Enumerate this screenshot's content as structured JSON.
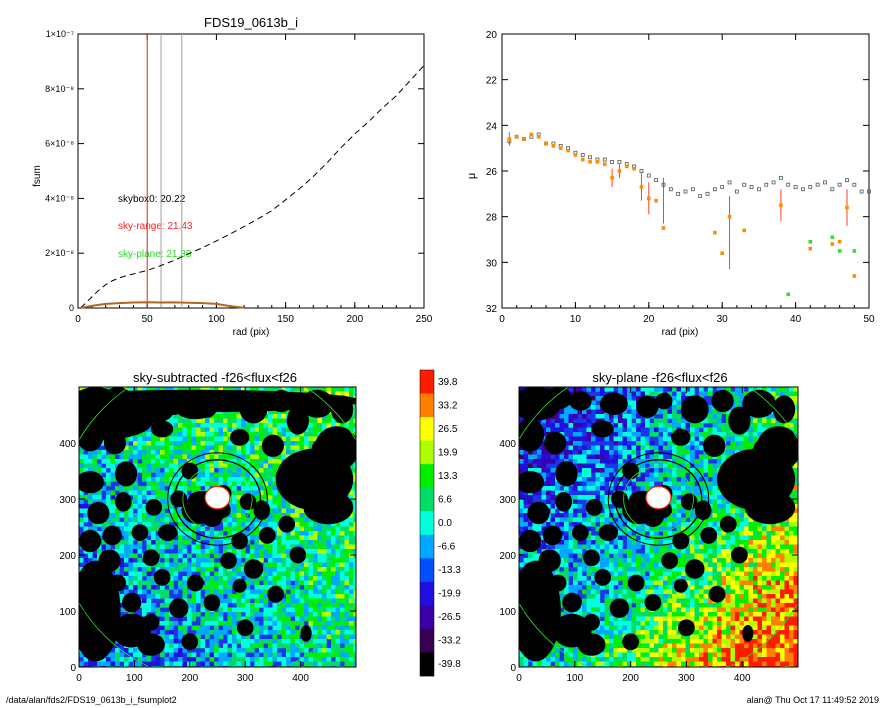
{
  "footer": {
    "left": "/data/alan/fds2/FDS19_0613b_i_fsumplot2",
    "right": "alan@  Thu Oct 17 11:49:52 2019"
  },
  "chart_data": [
    {
      "type": "line",
      "title": "FDS19_0613b_i",
      "xlabel": "rad (pix)",
      "ylabel": "fsum",
      "xlim": [
        0,
        250
      ],
      "ylim": [
        0,
        1e-07
      ],
      "xticks": [
        "0",
        "50",
        "100",
        "150",
        "200",
        "250"
      ],
      "yticks": [
        "0",
        "2×10⁻⁸",
        "4×10⁻⁸",
        "6×10⁻⁸",
        "8×10⁻⁸",
        "1×10⁻⁷"
      ],
      "vlines": [
        {
          "x": 50,
          "color": "#e02020"
        },
        {
          "x": 60,
          "color": "#a0a0a0"
        },
        {
          "x": 75,
          "color": "#a0a0a0"
        }
      ],
      "annotations": [
        {
          "text": "skybox0: 20.22",
          "color": "#000000"
        },
        {
          "text": "sky-range: 21.43",
          "color": "#ff2020"
        },
        {
          "text": "sky-plane: 21.39",
          "color": "#20dd20"
        }
      ],
      "series": [
        {
          "style": "dashed",
          "color": "#000000",
          "x": [
            2,
            5,
            10,
            15,
            20,
            25,
            30,
            35,
            40,
            45,
            50,
            60,
            70,
            80,
            90,
            100,
            110,
            120,
            130,
            140,
            150,
            160,
            170,
            180,
            190,
            200,
            210,
            220,
            230,
            240,
            250
          ],
          "y": [
            1e-10,
            1.5e-09,
            4e-09,
            6.5e-09,
            8.5e-09,
            1e-08,
            1.1e-08,
            1.18e-08,
            1.24e-08,
            1.31e-08,
            1.37e-08,
            1.55e-08,
            1.75e-08,
            1.98e-08,
            2.2e-08,
            2.45e-08,
            2.7e-08,
            2.97e-08,
            3.25e-08,
            3.55e-08,
            3.95e-08,
            4.35e-08,
            4.8e-08,
            5.3e-08,
            5.85e-08,
            6.35e-08,
            6.8e-08,
            7.3e-08,
            7.75e-08,
            8.3e-08,
            8.85e-08
          ]
        },
        {
          "style": "solid",
          "color": "#b5651d",
          "x": [
            2,
            10,
            20,
            30,
            40,
            50,
            60,
            70,
            80,
            90,
            100,
            110,
            120
          ],
          "y": [
            5e-11,
            8e-10,
            1.5e-09,
            1.8e-09,
            2e-09,
            2.1e-09,
            2e-09,
            2.05e-09,
            1.9e-09,
            1.8e-09,
            1.5e-09,
            7e-10,
            1e-10
          ]
        }
      ]
    },
    {
      "type": "scatter",
      "title": "",
      "xlabel": "rad (pix)",
      "ylabel": "μ",
      "xlim": [
        0,
        50
      ],
      "ylim": [
        32,
        20
      ],
      "xticks": [
        "0",
        "10",
        "20",
        "30",
        "40",
        "50"
      ],
      "yticks": [
        "20",
        "22",
        "24",
        "26",
        "28",
        "30",
        "32"
      ],
      "series": [
        {
          "marker": "square-open",
          "color": "#555555",
          "x": [
            1,
            2,
            3,
            4,
            5,
            6,
            7,
            8,
            9,
            10,
            11,
            12,
            13,
            14,
            15,
            16,
            17,
            18,
            19,
            20,
            21,
            22,
            23,
            24,
            25,
            26,
            27,
            28,
            29,
            30,
            31,
            32,
            33,
            34,
            35,
            36,
            37,
            38,
            39,
            40,
            41,
            42,
            43,
            44,
            45,
            46,
            47,
            48,
            49,
            50
          ],
          "y": [
            24.7,
            24.5,
            24.6,
            24.5,
            24.4,
            24.8,
            24.8,
            24.9,
            25.0,
            25.2,
            25.3,
            25.4,
            25.5,
            25.5,
            25.6,
            25.6,
            25.7,
            25.8,
            26.0,
            26.2,
            26.4,
            26.6,
            26.8,
            27.0,
            26.9,
            26.8,
            27.1,
            27.0,
            26.8,
            26.7,
            26.5,
            26.9,
            26.6,
            26.7,
            26.8,
            26.6,
            26.5,
            26.3,
            26.6,
            26.7,
            26.8,
            26.7,
            26.6,
            26.5,
            26.8,
            26.6,
            26.4,
            26.6,
            26.9,
            26.9
          ]
        },
        {
          "marker": "dot",
          "color": "#ff8c00",
          "x": [
            1,
            2,
            3,
            4,
            5,
            6,
            7,
            8,
            9,
            10,
            11,
            12,
            13,
            14,
            15,
            16,
            17,
            18,
            19,
            20,
            21,
            22,
            29,
            30,
            31,
            33,
            38,
            42,
            45,
            46,
            47,
            48
          ],
          "y": [
            24.6,
            24.5,
            24.6,
            24.4,
            24.5,
            24.8,
            24.9,
            25.0,
            25.1,
            25.3,
            25.5,
            25.6,
            25.6,
            25.7,
            26.3,
            26.0,
            25.8,
            25.9,
            26.7,
            27.2,
            27.3,
            28.5,
            28.7,
            29.6,
            28.0,
            28.6,
            27.5,
            29.4,
            29.2,
            29.1,
            27.6,
            30.6
          ]
        },
        {
          "marker": "dot",
          "color": "#33dd33",
          "x": [
            39,
            42,
            45,
            46,
            48
          ],
          "y": [
            31.4,
            29.1,
            28.9,
            29.5,
            29.5
          ]
        }
      ],
      "errorbars": [
        {
          "x": 1,
          "lo": 24.3,
          "hi": 24.9
        },
        {
          "x": 15,
          "lo": 25.9,
          "hi": 26.7
        },
        {
          "x": 16,
          "lo": 25.7,
          "hi": 26.3
        },
        {
          "x": 19,
          "lo": 26.1,
          "hi": 27.3
        },
        {
          "x": 20,
          "lo": 26.5,
          "hi": 27.9
        },
        {
          "x": 22,
          "lo": 26.3,
          "hi": 28.3
        },
        {
          "x": 31,
          "lo": 27.1,
          "hi": 30.3
        },
        {
          "x": 38,
          "lo": 26.8,
          "hi": 28.2
        },
        {
          "x": 47,
          "lo": 26.8,
          "hi": 28.4
        }
      ]
    },
    {
      "type": "heatmap",
      "title": "sky-subtracted -f26<flux<f26",
      "xlim": [
        0,
        500
      ],
      "ylim": [
        0,
        500
      ],
      "xticks": [
        "0",
        "100",
        "200",
        "300",
        "400"
      ],
      "yticks": [
        "0",
        "100",
        "200",
        "300",
        "400"
      ]
    },
    {
      "type": "heatmap",
      "title": "sky-plane -f26<flux<f26",
      "xlim": [
        0,
        500
      ],
      "ylim": [
        0,
        500
      ],
      "xticks": [
        "0",
        "100",
        "200",
        "300",
        "400"
      ],
      "yticks": [
        "0",
        "100",
        "200",
        "300",
        "400"
      ]
    },
    {
      "type": "colorbar",
      "labels": [
        "39.8",
        "33.2",
        "26.5",
        "19.9",
        "13.3",
        "6.6",
        "0.0",
        "-6.6",
        "-13.3",
        "-19.9",
        "-26.5",
        "-33.2",
        "-39.8"
      ],
      "colors": [
        "#ff1a00",
        "#ff8000",
        "#ffff00",
        "#b0ff00",
        "#00ee00",
        "#00dd66",
        "#00ffdd",
        "#00a8ff",
        "#0050ff",
        "#2010dd",
        "#3c00a8",
        "#3a0050",
        "#000000"
      ]
    }
  ]
}
